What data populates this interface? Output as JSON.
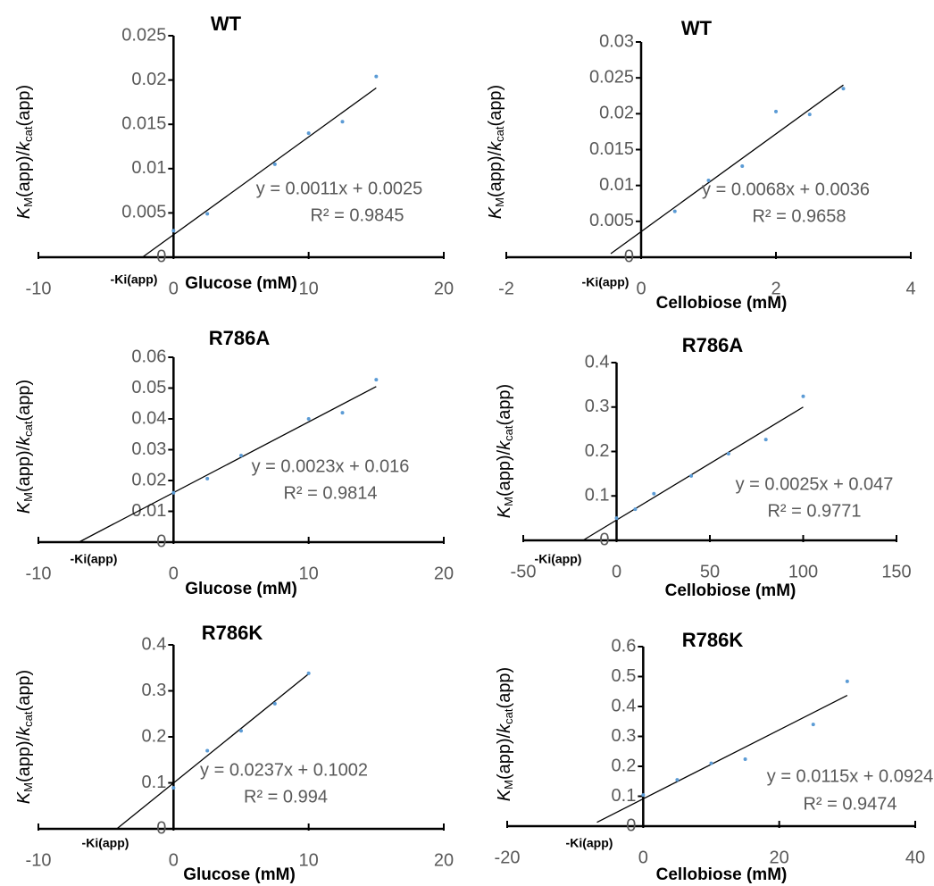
{
  "chart_data": [
    {
      "type": "scatter",
      "title": "WT",
      "xlabel": "Glucose (mM)",
      "ylabel": [
        "K",
        "M",
        "(app)/",
        "k",
        "cat",
        "(app)"
      ],
      "xlim": [
        -10,
        20
      ],
      "xticks": [
        -10,
        0,
        10,
        20
      ],
      "ylim": [
        0,
        0.025
      ],
      "yticks": [
        0,
        0.005,
        0.01,
        0.015,
        0.02,
        0.025
      ],
      "series": [
        {
          "color": "#5b9bd5",
          "x": [
            0,
            2.5,
            7.5,
            10,
            12.5,
            15
          ],
          "values": [
            0.003,
            0.0049,
            0.0105,
            0.014,
            0.0153,
            0.0204
          ]
        }
      ],
      "fit": {
        "color": "#000000",
        "x": [
          -2.3,
          15
        ],
        "y": [
          0,
          0.0191
        ],
        "equation": "y = 0.0011x + 0.0025",
        "r2": "R² = 0.9845"
      },
      "annotation": "-Ki(app)"
    },
    {
      "type": "scatter",
      "title": "WT",
      "xlabel": "Cellobiose (mM)",
      "ylabel": [
        "K",
        "M",
        "(app)/",
        "k",
        "cat",
        "(app)"
      ],
      "xlim": [
        -2,
        4
      ],
      "xticks": [
        -2,
        0,
        2,
        4
      ],
      "ylim": [
        0,
        0.03
      ],
      "yticks": [
        0,
        0.005,
        0.01,
        0.015,
        0.02,
        0.025,
        0.03
      ],
      "series": [
        {
          "color": "#5b9bd5",
          "x": [
            0.5,
            1,
            1.5,
            2,
            2.5,
            3
          ],
          "values": [
            0.0064,
            0.0107,
            0.0127,
            0.0203,
            0.0199,
            0.0235
          ]
        }
      ],
      "fit": {
        "color": "#000000",
        "x": [
          -0.45,
          3
        ],
        "y": [
          0.0005,
          0.024
        ],
        "equation": "y = 0.0068x + 0.0036",
        "r2": "R² = 0.9658"
      },
      "annotation": "-Ki(app)"
    },
    {
      "type": "scatter",
      "title": "R786A",
      "xlabel": "Glucose (mM)",
      "ylabel": [
        "K",
        "M",
        "(app)/",
        "k",
        "cat",
        "(app)"
      ],
      "xlim": [
        -10,
        20
      ],
      "xticks": [
        -10,
        0,
        10,
        20
      ],
      "ylim": [
        0,
        0.06
      ],
      "yticks": [
        0,
        0.01,
        0.02,
        0.03,
        0.04,
        0.05,
        0.06
      ],
      "series": [
        {
          "color": "#5b9bd5",
          "x": [
            0,
            2.5,
            5,
            10,
            12.5,
            15
          ],
          "values": [
            0.016,
            0.0206,
            0.0281,
            0.04,
            0.042,
            0.0527
          ]
        }
      ],
      "fit": {
        "color": "#000000",
        "x": [
          -7,
          15
        ],
        "y": [
          0,
          0.0505
        ],
        "equation": "y = 0.0023x + 0.016",
        "r2": "R² = 0.9814"
      },
      "annotation": "-Ki(app)"
    },
    {
      "type": "scatter",
      "title": "R786A",
      "xlabel": "Cellobiose (mM)",
      "ylabel": [
        "K",
        "M",
        "(app)/",
        "k",
        "cat",
        "(app)"
      ],
      "xlim": [
        -50,
        150
      ],
      "xticks": [
        -50,
        0,
        50,
        100,
        150
      ],
      "ylim": [
        0,
        0.4
      ],
      "yticks": [
        0,
        0.1,
        0.2,
        0.3,
        0.4
      ],
      "series": [
        {
          "color": "#5b9bd5",
          "x": [
            0,
            10,
            20,
            40,
            60,
            80,
            100
          ],
          "values": [
            0.05,
            0.07,
            0.105,
            0.145,
            0.195,
            0.227,
            0.324
          ]
        }
      ],
      "fit": {
        "color": "#000000",
        "x": [
          -18,
          100
        ],
        "y": [
          0,
          0.3
        ],
        "equation": "y = 0.0025x + 0.047",
        "r2": "R² = 0.9771"
      },
      "annotation": "-Ki(app)"
    },
    {
      "type": "scatter",
      "title": "R786K",
      "xlabel": "Glucose (mM)",
      "ylabel": [
        "K",
        "M",
        "(app)/",
        "k",
        "cat",
        "(app)"
      ],
      "xlim": [
        -10,
        20
      ],
      "xticks": [
        -10,
        0,
        10,
        20
      ],
      "ylim": [
        0,
        0.4
      ],
      "yticks": [
        0,
        0.1,
        0.2,
        0.3,
        0.4
      ],
      "series": [
        {
          "color": "#5b9bd5",
          "x": [
            0,
            2.5,
            5,
            7.5,
            10
          ],
          "values": [
            0.089,
            0.17,
            0.213,
            0.272,
            0.338
          ]
        }
      ],
      "fit": {
        "color": "#000000",
        "x": [
          -4.2,
          10
        ],
        "y": [
          0,
          0.337
        ],
        "equation": "y = 0.0237x + 0.1002",
        "r2": "R² = 0.994"
      },
      "annotation": "-Ki(app)"
    },
    {
      "type": "scatter",
      "title": "R786K",
      "xlabel": "Cellobiose (mM)",
      "ylabel": [
        "K",
        "M",
        "(app)/",
        "k",
        "cat",
        "(app)"
      ],
      "xlim": [
        -20,
        40
      ],
      "xticks": [
        -20,
        0,
        20,
        40
      ],
      "ylim": [
        0,
        0.6
      ],
      "yticks": [
        0,
        0.1,
        0.2,
        0.3,
        0.4,
        0.5,
        0.6
      ],
      "series": [
        {
          "color": "#5b9bd5",
          "x": [
            0,
            5,
            10,
            15,
            25,
            30
          ],
          "values": [
            0.104,
            0.155,
            0.21,
            0.224,
            0.34,
            0.484
          ]
        }
      ],
      "fit": {
        "color": "#000000",
        "x": [
          -6.8,
          30
        ],
        "y": [
          0.013,
          0.437
        ],
        "equation": "y = 0.0115x + 0.0924",
        "r2": "R² = 0.9474"
      },
      "annotation": "-Ki(app)"
    }
  ]
}
